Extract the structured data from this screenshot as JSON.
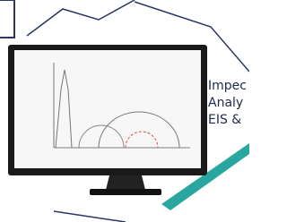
{
  "caption": {
    "lines": [
      "Impec",
      "Analy",
      "EIS &"
    ]
  }
}
